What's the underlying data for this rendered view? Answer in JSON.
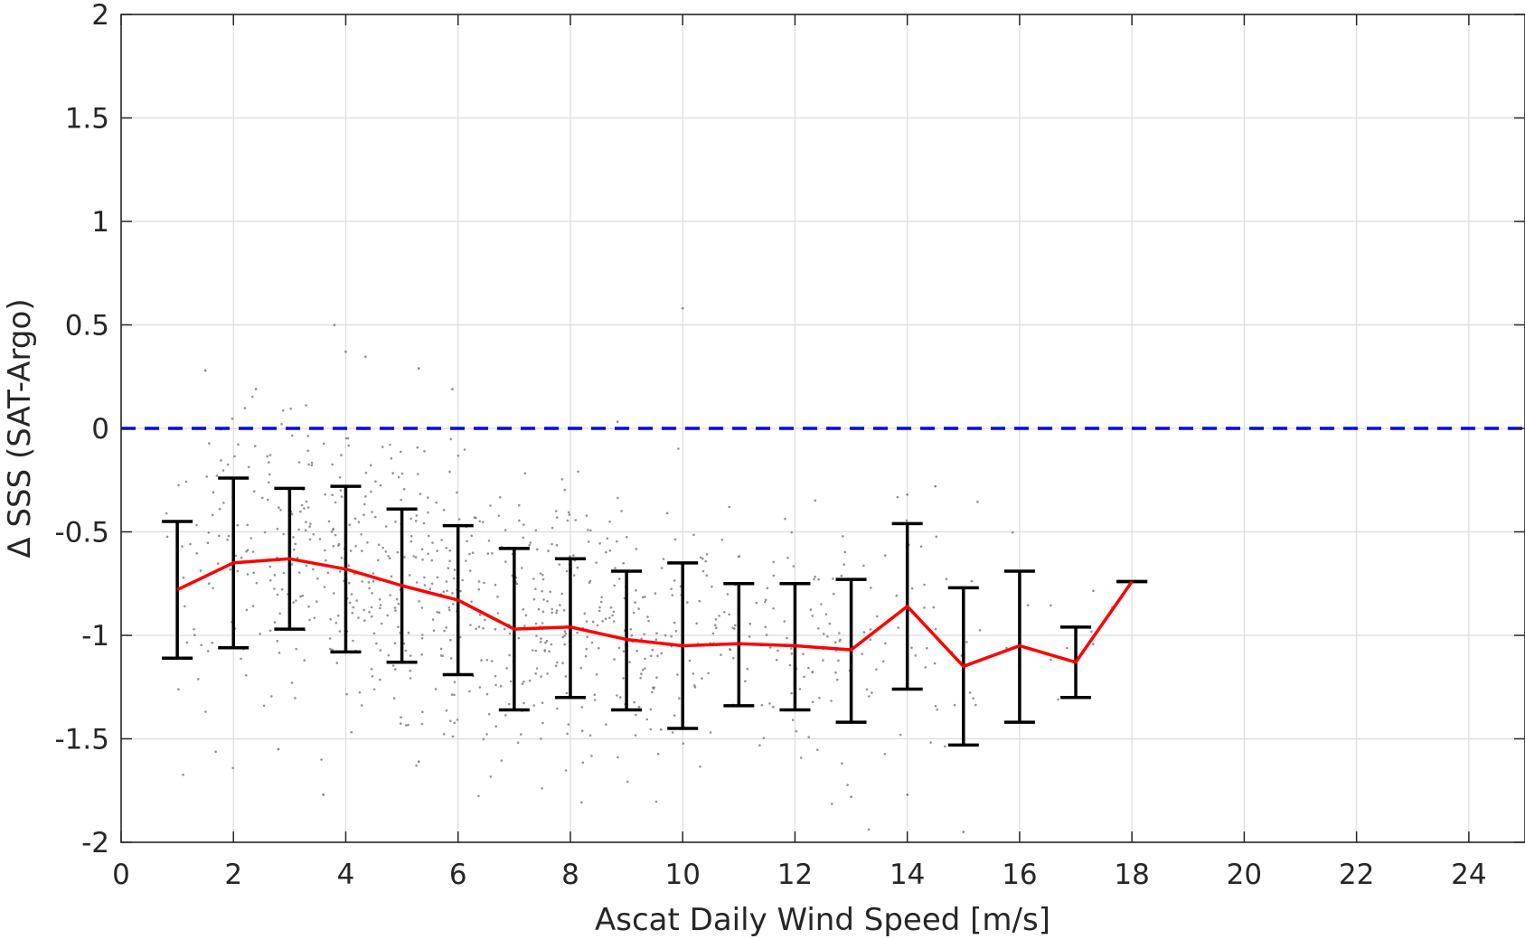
{
  "chart_data": {
    "type": "scatter",
    "xlabel": "Ascat Daily Wind Speed [m/s]",
    "ylabel": "Δ SSS (SAT-Argo)",
    "xlim": [
      0,
      25
    ],
    "ylim": [
      -2,
      2
    ],
    "x_ticks": [
      0,
      2,
      4,
      6,
      8,
      10,
      12,
      14,
      16,
      18,
      20,
      22,
      24
    ],
    "y_ticks": [
      2,
      1.5,
      1,
      0.5,
      0,
      -0.5,
      -1,
      -1.5,
      -2
    ],
    "x_tick_labels": [
      "0",
      "2",
      "4",
      "6",
      "8",
      "10",
      "12",
      "14",
      "16",
      "18",
      "20",
      "22",
      "24"
    ],
    "y_tick_labels": [
      "2",
      "1.5",
      "1",
      "0.5",
      "0",
      "-0.5",
      "-1",
      "-1.5",
      "-2"
    ],
    "grid": true,
    "reference_line": {
      "y": 0,
      "style": "dashed",
      "color": "#0000ff"
    },
    "series": [
      {
        "type": "line",
        "color": "#ff0000",
        "x": [
          1,
          2,
          3,
          4,
          5,
          6,
          7,
          8,
          9,
          10,
          11,
          12,
          13,
          14,
          15,
          16,
          17,
          18
        ],
        "y": [
          -0.78,
          -0.65,
          -0.63,
          -0.68,
          -0.76,
          -0.83,
          -0.97,
          -0.96,
          -1.02,
          -1.05,
          -1.04,
          -1.05,
          -1.07,
          -0.86,
          -1.15,
          -1.05,
          -1.13,
          -0.74
        ]
      },
      {
        "type": "errorbar",
        "color": "#000000",
        "x": [
          1,
          2,
          3,
          4,
          5,
          6,
          7,
          8,
          9,
          10,
          11,
          12,
          13,
          14,
          15,
          16,
          17,
          18
        ],
        "upper": [
          -0.45,
          -0.24,
          -0.29,
          -0.28,
          -0.39,
          -0.47,
          -0.58,
          -0.63,
          -0.69,
          -0.65,
          -0.75,
          -0.75,
          -0.73,
          -0.46,
          -0.77,
          -0.69,
          -0.96,
          -0.74
        ],
        "lower": [
          -1.11,
          -1.06,
          -0.97,
          -1.08,
          -1.13,
          -1.19,
          -1.36,
          -1.3,
          -1.36,
          -1.45,
          -1.34,
          -1.36,
          -1.42,
          -1.26,
          -1.53,
          -1.42,
          -1.3,
          -0.74
        ]
      },
      {
        "type": "scatter",
        "color": "#808080",
        "point_count": 900,
        "outliers": [
          {
            "x": 3.8,
            "y": 0.5
          },
          {
            "x": 4.0,
            "y": 0.37
          },
          {
            "x": 10.0,
            "y": 0.58
          },
          {
            "x": 1.5,
            "y": 0.28
          },
          {
            "x": 5.3,
            "y": 0.29
          },
          {
            "x": 5.9,
            "y": 0.19
          },
          {
            "x": 2.4,
            "y": 0.19
          },
          {
            "x": 14.0,
            "y": -0.32
          },
          {
            "x": 14.5,
            "y": -0.28
          },
          {
            "x": 15.0,
            "y": -1.95
          },
          {
            "x": 14.0,
            "y": -1.77
          },
          {
            "x": 3.6,
            "y": -1.77
          },
          {
            "x": 13.0,
            "y": -1.78
          },
          {
            "x": 5.3,
            "y": -1.61
          },
          {
            "x": 2.8,
            "y": -1.55
          }
        ]
      }
    ]
  }
}
